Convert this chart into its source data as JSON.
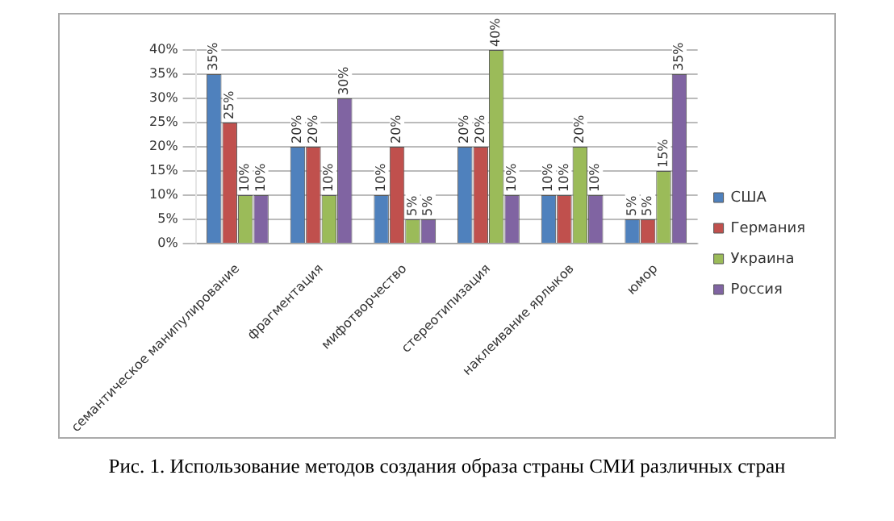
{
  "chart_data": {
    "type": "bar",
    "title": "Рис. 1. Использование методов создания образа страны СМИ различных стран",
    "categories": [
      "семантическое манипулирование",
      "фрагментация",
      "мифотворчество",
      "стереотипизация",
      "наклеивание ярлыков",
      "юмор"
    ],
    "series": [
      {
        "name": "США",
        "color": "#4f81bd",
        "values": [
          35,
          20,
          10,
          20,
          10,
          5
        ],
        "value_labels": [
          "35%",
          "20%",
          "10%",
          "20%",
          "10%",
          "5%"
        ]
      },
      {
        "name": "Германия",
        "color": "#c0504d",
        "values": [
          25,
          20,
          20,
          20,
          10,
          5
        ],
        "value_labels": [
          "25%",
          "20%",
          "20%",
          "20%",
          "10%",
          "5%"
        ]
      },
      {
        "name": "Украина",
        "color": "#9bbb59",
        "values": [
          10,
          10,
          5,
          40,
          20,
          15
        ],
        "value_labels": [
          "10%",
          "10%",
          "5%",
          "40%",
          "20%",
          "15%"
        ]
      },
      {
        "name": "Россия",
        "color": "#8064a2",
        "values": [
          10,
          30,
          5,
          10,
          10,
          35
        ],
        "value_labels": [
          "10%",
          "30%",
          "5%",
          "10%",
          "10%",
          "35%"
        ]
      }
    ],
    "ylim": [
      0,
      40
    ],
    "yticks": [
      {
        "value": 0,
        "label": "0%"
      },
      {
        "value": 5,
        "label": "5%"
      },
      {
        "value": 10,
        "label": "10%"
      },
      {
        "value": 15,
        "label": "15%"
      },
      {
        "value": 20,
        "label": "20%"
      },
      {
        "value": 25,
        "label": "25%"
      },
      {
        "value": 30,
        "label": "30%"
      },
      {
        "value": 35,
        "label": "35%"
      },
      {
        "value": 40,
        "label": "40%"
      }
    ],
    "grid": "y",
    "legend": "right"
  }
}
